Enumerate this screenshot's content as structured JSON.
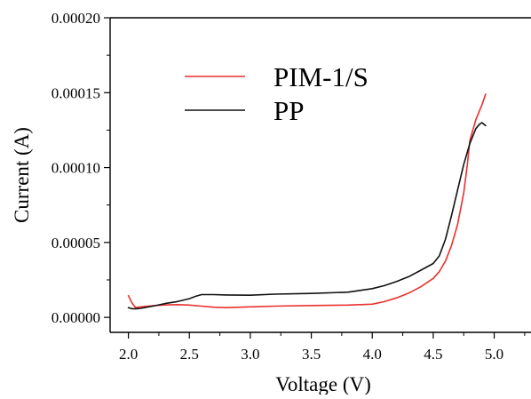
{
  "chart_data": {
    "type": "line",
    "title": "",
    "xlabel": "Voltage (V)",
    "ylabel": "Current (A)",
    "xlim": [
      1.85,
      5.2
    ],
    "ylim": [
      -1e-05,
      0.0002
    ],
    "x_ticks": [
      2.0,
      2.5,
      3.0,
      3.5,
      4.0,
      4.5,
      5.0
    ],
    "x_tick_labels": [
      "2.0",
      "2.5",
      "3.0",
      "3.5",
      "4.0",
      "4.5",
      "5.0"
    ],
    "y_ticks": [
      0.0,
      5e-05,
      0.0001,
      0.00015,
      0.0002
    ],
    "y_tick_labels": [
      "0.00000",
      "0.00005",
      "0.00010",
      "0.00015",
      "0.00020"
    ],
    "grid": false,
    "legend": "top-left",
    "series": [
      {
        "name": "PIM-1/S",
        "color": "#e8312f",
        "x": [
          2.0,
          2.03,
          2.06,
          2.1,
          2.2,
          2.3,
          2.4,
          2.5,
          2.6,
          2.7,
          2.8,
          3.0,
          3.2,
          3.5,
          3.8,
          4.0,
          4.1,
          4.2,
          4.3,
          4.4,
          4.5,
          4.55,
          4.6,
          4.65,
          4.7,
          4.75,
          4.78,
          4.8,
          4.85,
          4.9,
          4.93
        ],
        "y": [
          1.45e-05,
          9.5e-06,
          6.5e-06,
          7e-06,
          7.8e-06,
          8.3e-06,
          8.5e-06,
          8.2e-06,
          7.5e-06,
          6.8e-06,
          6.5e-06,
          7e-06,
          7.5e-06,
          7.9e-06,
          8.2e-06,
          8.8e-06,
          1.05e-05,
          1.3e-05,
          1.62e-05,
          2.05e-05,
          2.6e-05,
          3.05e-05,
          3.75e-05,
          4.8e-05,
          6.2e-05,
          8.3e-05,
          0.000102,
          0.000118,
          0.000132,
          0.000142,
          0.000149
        ]
      },
      {
        "name": "PP",
        "color": "#111111",
        "x": [
          2.0,
          2.03,
          2.07,
          2.1,
          2.2,
          2.3,
          2.4,
          2.5,
          2.55,
          2.6,
          2.7,
          2.8,
          3.0,
          3.2,
          3.5,
          3.8,
          4.0,
          4.1,
          4.2,
          4.3,
          4.4,
          4.5,
          4.55,
          4.6,
          4.65,
          4.7,
          4.75,
          4.8,
          4.85,
          4.88,
          4.9,
          4.93
        ],
        "y": [
          6.5e-06,
          5.8e-06,
          5.8e-06,
          6e-06,
          7.5e-06,
          9.2e-06,
          1.05e-05,
          1.25e-05,
          1.4e-05,
          1.52e-05,
          1.52e-05,
          1.5e-05,
          1.48e-05,
          1.55e-05,
          1.6e-05,
          1.68e-05,
          1.92e-05,
          2.12e-05,
          2.4e-05,
          2.72e-05,
          3.15e-05,
          3.6e-05,
          4.1e-05,
          5.2e-05,
          6.8e-05,
          8.5e-05,
          0.000102,
          0.000116,
          0.000126,
          0.000129,
          0.00013,
          0.000128
        ]
      }
    ]
  }
}
